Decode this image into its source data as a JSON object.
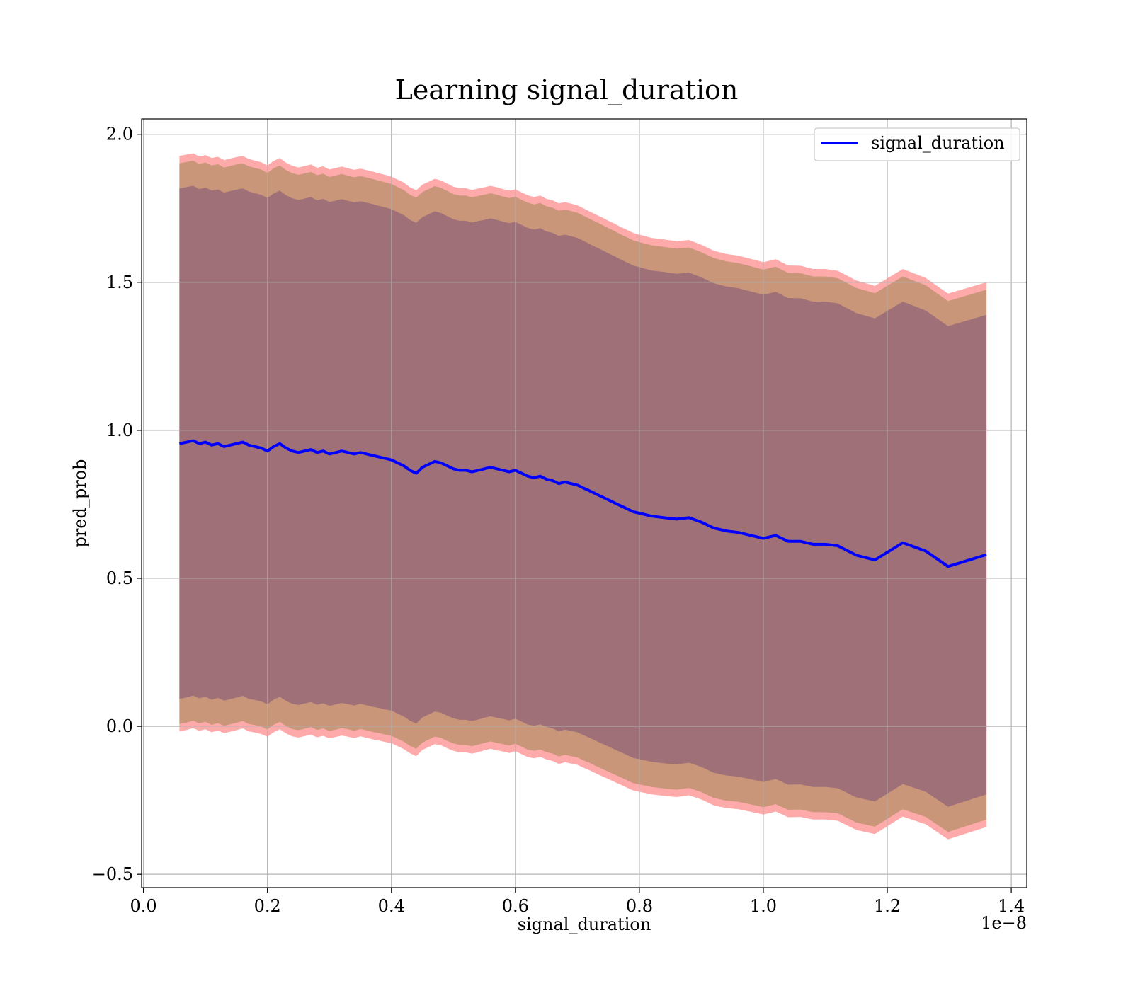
{
  "chart_data": {
    "type": "line",
    "title": "Learning signal_duration",
    "xlabel": "signal_duration",
    "ylabel": "pred_prob",
    "x_offset_label": "1e−8",
    "xlim": [
      -0.003,
      1.425
    ],
    "ylim": [
      -0.545,
      2.052
    ],
    "x_ticks": [
      0.0,
      0.2,
      0.4,
      0.6,
      0.8,
      1.0,
      1.2,
      1.4
    ],
    "x_tick_labels": [
      "0.0",
      "0.2",
      "0.4",
      "0.6",
      "0.8",
      "1.0",
      "1.2",
      "1.4"
    ],
    "y_ticks": [
      -0.5,
      0.0,
      0.5,
      1.0,
      1.5,
      2.0
    ],
    "y_tick_labels": [
      "−0.5",
      "0.0",
      "0.5",
      "1.0",
      "1.5",
      "2.0"
    ],
    "grid": true,
    "legend_position": "top-right",
    "colors": {
      "line": "#0000ff",
      "outer_band": "#ffaaaa",
      "middle_band": "#c9967a",
      "inner_band": "#a07078",
      "grid": "#b0b0b0"
    },
    "series": [
      {
        "name": "signal_duration",
        "x": [
          0.058,
          0.07,
          0.08,
          0.09,
          0.1,
          0.11,
          0.12,
          0.13,
          0.14,
          0.15,
          0.16,
          0.17,
          0.18,
          0.19,
          0.2,
          0.21,
          0.22,
          0.23,
          0.24,
          0.25,
          0.26,
          0.27,
          0.28,
          0.29,
          0.3,
          0.31,
          0.32,
          0.33,
          0.34,
          0.35,
          0.36,
          0.37,
          0.38,
          0.39,
          0.4,
          0.41,
          0.42,
          0.43,
          0.44,
          0.45,
          0.46,
          0.47,
          0.48,
          0.49,
          0.5,
          0.51,
          0.52,
          0.53,
          0.54,
          0.55,
          0.56,
          0.57,
          0.58,
          0.59,
          0.6,
          0.61,
          0.62,
          0.63,
          0.64,
          0.65,
          0.66,
          0.67,
          0.68,
          0.69,
          0.7,
          0.71,
          0.72,
          0.73,
          0.74,
          0.75,
          0.76,
          0.77,
          0.78,
          0.79,
          0.8,
          0.82,
          0.84,
          0.86,
          0.88,
          0.9,
          0.92,
          0.94,
          0.96,
          0.98,
          1.0,
          1.02,
          1.04,
          1.06,
          1.08,
          1.1,
          1.12,
          1.15,
          1.18,
          1.225,
          1.262,
          1.298,
          1.36
        ],
        "y": [
          0.955,
          0.96,
          0.965,
          0.955,
          0.96,
          0.95,
          0.955,
          0.945,
          0.95,
          0.955,
          0.96,
          0.95,
          0.945,
          0.94,
          0.93,
          0.945,
          0.955,
          0.94,
          0.93,
          0.925,
          0.93,
          0.935,
          0.925,
          0.93,
          0.92,
          0.925,
          0.93,
          0.925,
          0.92,
          0.925,
          0.92,
          0.915,
          0.91,
          0.905,
          0.9,
          0.89,
          0.88,
          0.865,
          0.855,
          0.875,
          0.885,
          0.895,
          0.89,
          0.88,
          0.87,
          0.865,
          0.865,
          0.86,
          0.865,
          0.87,
          0.875,
          0.87,
          0.865,
          0.86,
          0.865,
          0.855,
          0.845,
          0.84,
          0.845,
          0.835,
          0.83,
          0.82,
          0.825,
          0.82,
          0.815,
          0.805,
          0.795,
          0.785,
          0.775,
          0.765,
          0.755,
          0.745,
          0.735,
          0.725,
          0.72,
          0.71,
          0.705,
          0.7,
          0.705,
          0.69,
          0.67,
          0.66,
          0.655,
          0.645,
          0.635,
          0.645,
          0.625,
          0.625,
          0.615,
          0.615,
          0.61,
          0.578,
          0.562,
          0.62,
          0.592,
          0.54,
          0.58
        ],
        "std": [
          0.862,
          0.862,
          0.861,
          0.86,
          0.86,
          0.86,
          0.859,
          0.858,
          0.858,
          0.858,
          0.857,
          0.857,
          0.856,
          0.856,
          0.855,
          0.855,
          0.855,
          0.854,
          0.854,
          0.853,
          0.853,
          0.853,
          0.852,
          0.852,
          0.851,
          0.851,
          0.851,
          0.85,
          0.85,
          0.849,
          0.849,
          0.849,
          0.848,
          0.848,
          0.847,
          0.847,
          0.847,
          0.846,
          0.846,
          0.845,
          0.845,
          0.845,
          0.844,
          0.844,
          0.843,
          0.843,
          0.843,
          0.842,
          0.842,
          0.841,
          0.841,
          0.841,
          0.84,
          0.84,
          0.839,
          0.839,
          0.839,
          0.838,
          0.838,
          0.837,
          0.837,
          0.837,
          0.836,
          0.836,
          0.835,
          0.835,
          0.834,
          0.834,
          0.834,
          0.833,
          0.833,
          0.832,
          0.832,
          0.832,
          0.831,
          0.83,
          0.83,
          0.829,
          0.828,
          0.827,
          0.827,
          0.826,
          0.825,
          0.824,
          0.823,
          0.823,
          0.822,
          0.821,
          0.82,
          0.82,
          0.819,
          0.818,
          0.816,
          0.815,
          0.813,
          0.812,
          0.81
        ]
      }
    ],
    "band_offsets": {
      "inner": 0.0,
      "middle": 0.085,
      "outer": 0.11
    }
  }
}
